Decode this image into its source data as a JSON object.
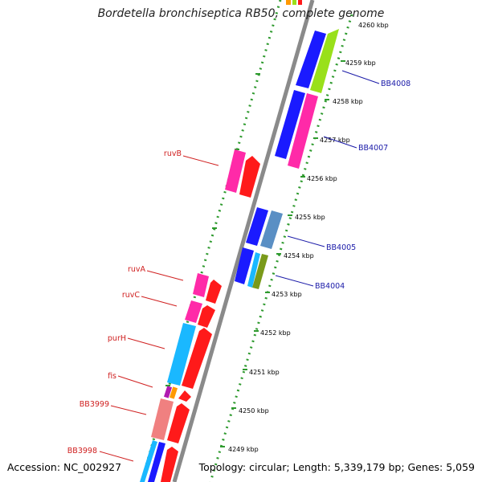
{
  "title": "Bordetella bronchiseptica RB50, complete genome",
  "footer": {
    "accession": "Accession: NC_002927",
    "summary": "Topology: circular; Length: 5,339,179 bp; Genes: 5,059"
  },
  "colors": {
    "backbone": "#8a8a8a",
    "tick_dots": "#2e9a2e",
    "red_label": "#d02020",
    "blue_label": "#1a1aa8",
    "gene_red": "#ff1a1a",
    "gene_pink": "#ff2aa8",
    "gene_blue": "#1a1aff",
    "gene_cyan": "#1ab8ff",
    "gene_steel": "#5a8fc4",
    "gene_green": "#99e01a",
    "gene_olive": "#7a9a1a",
    "gene_salmon": "#f08080",
    "gene_orange": "#ff9900"
  },
  "ticks": [
    "4260 kbp",
    "4259 kbp",
    "4258 kbp",
    "4257 kbp",
    "4256 kbp",
    "4255 kbp",
    "4254 kbp",
    "4253 kbp",
    "4252 kbp",
    "4251 kbp",
    "4250 kbp",
    "4249 kbp"
  ],
  "labels_left": [
    "ruvB",
    "ruvA",
    "ruvC",
    "purH",
    "fis",
    "BB3999",
    "BB3998"
  ],
  "labels_right": [
    "BB4008",
    "BB4007",
    "BB4005",
    "BB4004"
  ]
}
